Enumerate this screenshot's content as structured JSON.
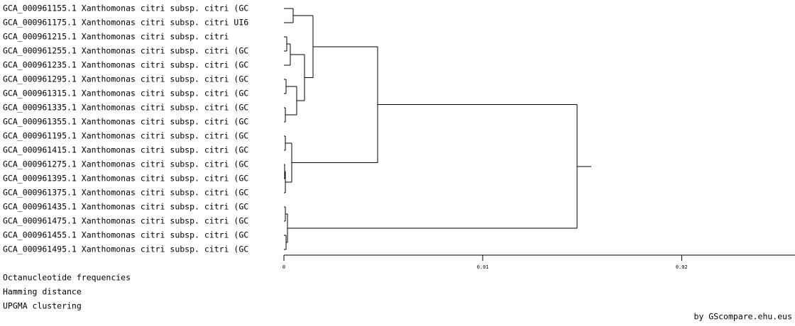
{
  "chart_data": {
    "type": "dendrogram",
    "tree": {
      "height": 0.01475,
      "children": [
        {
          "height": 0.00471,
          "children": [
            {
              "height": 0.00146,
              "children": [
                {
                  "height": 0.00046,
                  "children": [
                    {
                      "label": "GCA_000961155.1 Xanthomonas citri subsp. citri (GC"
                    },
                    {
                      "label": "GCA_000961175.1 Xanthomonas citri subsp. citri UI6"
                    }
                  ]
                },
                {
                  "height": 0.00104,
                  "children": [
                    {
                      "height": 0.00032,
                      "children": [
                        {
                          "height": 0.00014,
                          "children": [
                            {
                              "label": "GCA_000961215.1 Xanthomonas citri subsp. citri"
                            },
                            {
                              "label": "GCA_000961255.1 Xanthomonas citri subsp. citri (GC"
                            }
                          ]
                        },
                        {
                          "label": "GCA_000961235.1 Xanthomonas citri subsp. citri (GC"
                        }
                      ]
                    },
                    {
                      "height": 0.00064,
                      "children": [
                        {
                          "height": 0.00011,
                          "children": [
                            {
                              "label": "GCA_000961295.1 Xanthomonas citri subsp. citri (GC"
                            },
                            {
                              "label": "GCA_000961315.1 Xanthomonas citri subsp. citri (GC"
                            }
                          ]
                        },
                        {
                          "height": 7e-05,
                          "children": [
                            {
                              "label": "GCA_000961335.1 Xanthomonas citri subsp. citri (GC"
                            },
                            {
                              "label": "GCA_000961355.1 Xanthomonas citri subsp. citri (GC"
                            }
                          ]
                        }
                      ]
                    }
                  ]
                }
              ]
            },
            {
              "height": 0.00039,
              "children": [
                {
                  "height": 7e-05,
                  "children": [
                    {
                      "label": "GCA_000961195.1 Xanthomonas citri subsp. citri (GC"
                    },
                    {
                      "label": "GCA_000961415.1 Xanthomonas citri subsp. citri (GC"
                    }
                  ]
                },
                {
                  "height": 7e-05,
                  "children": [
                    {
                      "height": 4e-05,
                      "children": [
                        {
                          "label": "GCA_000961275.1 Xanthomonas citri subsp. citri (GC"
                        },
                        {
                          "label": "GCA_000961395.1 Xanthomonas citri subsp. citri (GC"
                        }
                      ]
                    },
                    {
                      "label": "GCA_000961375.1 Xanthomonas citri subsp. citri (GC"
                    }
                  ]
                }
              ]
            }
          ]
        },
        {
          "height": 0.00018,
          "children": [
            {
              "height": 7e-05,
              "children": [
                {
                  "label": "GCA_000961435.1 Xanthomonas citri subsp. citri (GC"
                },
                {
                  "label": "GCA_000961475.1 Xanthomonas citri subsp. citri (GC"
                }
              ]
            },
            {
              "height": 0.00011,
              "children": [
                {
                  "label": "GCA_000961455.1 Xanthomonas citri subsp. citri (GC"
                },
                {
                  "label": "GCA_000961495.1 Xanthomonas citri subsp. citri (GC"
                }
              ]
            }
          ]
        }
      ]
    },
    "xlim": [
      0,
      0.0257
    ],
    "xticks": [
      0,
      0.01,
      0.02
    ],
    "notes": [
      "Octanucleotide frequencies",
      "Hamming distance",
      "UPGMA clustering"
    ],
    "credit": "by GScompare.ehu.eus"
  }
}
